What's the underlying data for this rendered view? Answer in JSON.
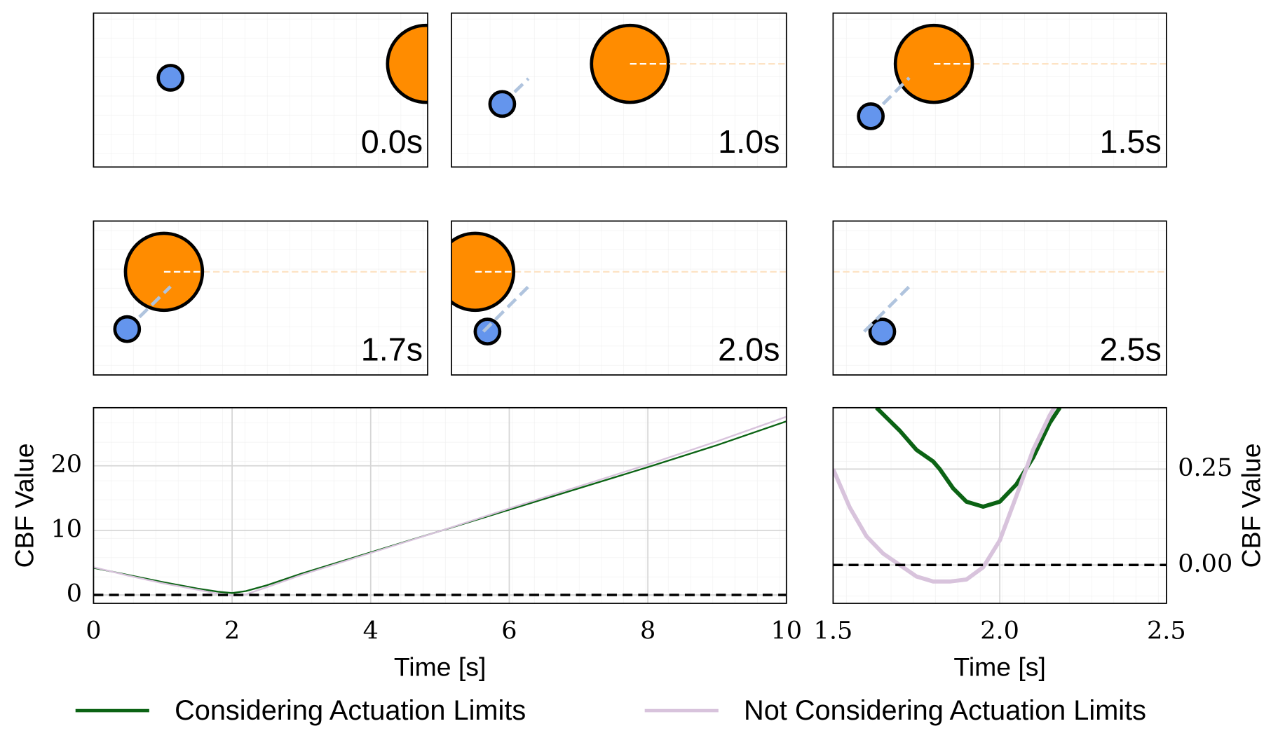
{
  "chart_data": [
    {
      "type": "snapshot",
      "label": "0.0s"
    },
    {
      "type": "snapshot",
      "label": "1.0s"
    },
    {
      "type": "snapshot",
      "label": "1.5s"
    },
    {
      "type": "snapshot",
      "label": "1.7s"
    },
    {
      "type": "snapshot",
      "label": "2.0s"
    },
    {
      "type": "snapshot",
      "label": "2.5s"
    },
    {
      "type": "line",
      "xlabel": "Time [s]",
      "ylabel": "CBF Value",
      "yaxis_side": "left",
      "xlim": [
        0,
        10
      ],
      "xticks": [
        0,
        2,
        4,
        6,
        8,
        10
      ],
      "ylim": [
        -1.3,
        29
      ],
      "yticks": [
        0,
        10,
        20
      ],
      "grid": true,
      "hline": 0,
      "legend": "bottom",
      "series": [
        {
          "name": "Considering Actuation Limits",
          "color": "#0b6314",
          "x": [
            0,
            0.5,
            1,
            1.5,
            1.8,
            2,
            2.2,
            2.5,
            3,
            4,
            5,
            6,
            7,
            8,
            9,
            10
          ],
          "values": [
            4.2,
            3.1,
            2.0,
            1.0,
            0.5,
            0.3,
            0.6,
            1.5,
            3.3,
            6.6,
            9.9,
            13.2,
            16.5,
            19.8,
            23.2,
            26.9
          ]
        },
        {
          "name": "Not Considering Actuation Limits",
          "color": "#d8c3dc",
          "x": [
            0,
            0.5,
            1,
            1.5,
            1.8,
            2,
            2.2,
            2.5,
            3,
            4,
            5,
            6,
            7,
            8,
            9,
            10
          ],
          "values": [
            4.3,
            3.0,
            1.8,
            0.8,
            0.2,
            -0.1,
            0.1,
            1.2,
            3.1,
            6.5,
            9.9,
            13.4,
            16.8,
            20.2,
            23.8,
            27.6
          ]
        }
      ]
    },
    {
      "type": "line",
      "xlabel": "Time [s]",
      "ylabel": "CBF Value",
      "yaxis_side": "right",
      "xlim": [
        1.5,
        2.5
      ],
      "xticks": [
        {
          "value": 1.5,
          "label": "1.5"
        },
        {
          "value": 2,
          "label": "2.0"
        },
        {
          "value": 2.5,
          "label": "2.5"
        }
      ],
      "ylim": [
        -0.1,
        0.41
      ],
      "yticks": [
        {
          "value": 0,
          "label": "0.00"
        },
        {
          "value": 0.25,
          "label": "0.25"
        }
      ],
      "grid": true,
      "hline": 0,
      "series": [
        {
          "color": "#0b6314",
          "x": [
            1.63,
            1.7,
            1.75,
            1.8,
            1.82,
            1.86,
            1.9,
            1.95,
            2.0,
            2.05,
            2.1,
            2.15,
            2.18
          ],
          "values": [
            0.41,
            0.35,
            0.3,
            0.27,
            0.25,
            0.2,
            0.165,
            0.152,
            0.165,
            0.21,
            0.28,
            0.37,
            0.41
          ]
        },
        {
          "color": "#d8c3dc",
          "x": [
            1.5,
            1.55,
            1.6,
            1.65,
            1.7,
            1.75,
            1.8,
            1.85,
            1.9,
            1.95,
            2.0,
            2.05,
            2.1,
            2.15,
            2.17
          ],
          "values": [
            0.25,
            0.15,
            0.075,
            0.03,
            0.0,
            -0.03,
            -0.043,
            -0.043,
            -0.038,
            -0.006,
            0.064,
            0.18,
            0.3,
            0.39,
            0.42
          ]
        }
      ]
    }
  ]
}
